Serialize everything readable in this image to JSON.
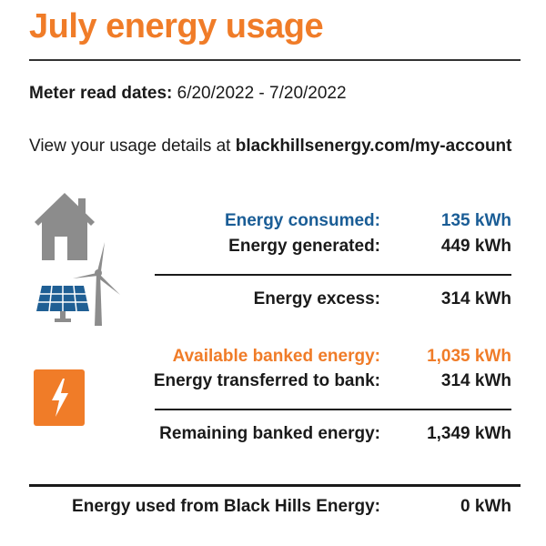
{
  "header": {
    "title": "July energy usage"
  },
  "meter": {
    "label": "Meter read dates:",
    "value": "6/20/2022 - 7/20/2022"
  },
  "details": {
    "prefix": "View your usage details at",
    "link": "blackhillsenergy.com/my-account"
  },
  "rows": [
    {
      "label": "Energy consumed:",
      "value": "135 kWh",
      "color": "#1a5d96"
    },
    {
      "label": "Energy generated:",
      "value": "449 kWh"
    },
    {
      "label": "Energy excess:",
      "value": "314 kWh"
    },
    {
      "label": "Available banked energy:",
      "value": "1,035 kWh",
      "color": "#f07c28"
    },
    {
      "label": "Energy transferred to bank:",
      "value": "314 kWh"
    },
    {
      "label": "Remaining banked energy:",
      "value": "1,349 kWh"
    },
    {
      "label": "Energy used from Black Hills Energy:",
      "value": "0 kWh"
    }
  ],
  "icons": {
    "house": "house-icon",
    "solar_wind": "solar-wind-icon",
    "bolt": "lightning-bolt-icon"
  },
  "colors": {
    "accent_orange": "#f07c28",
    "accent_blue": "#1a5d96",
    "icon_gray": "#8c8c8c",
    "solar_blue": "#1f5f94"
  }
}
